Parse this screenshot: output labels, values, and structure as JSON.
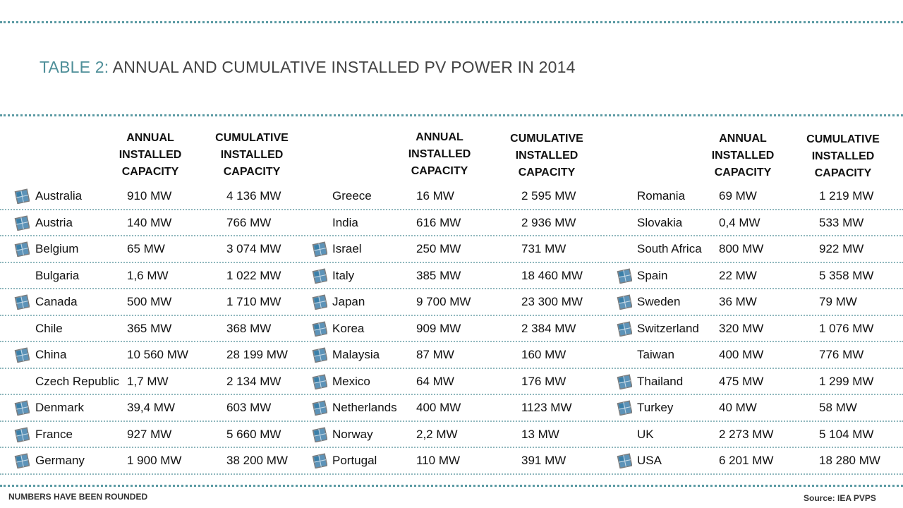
{
  "title": {
    "prefix": "TABLE 2:",
    "text": "ANNUAL AND CUMULATIVE INSTALLED PV POWER IN 2014"
  },
  "headers": {
    "annual": "ANNUAL\nINSTALLED\nCAPACITY",
    "cumulative": "CUMULATIVE\nINSTALLED\nCAPACITY"
  },
  "icon": {
    "name": "solar-panel-icon",
    "color": "#3a7fa8"
  },
  "columns": [
    {
      "rows": [
        {
          "country": "Australia",
          "annual": "910 MW",
          "cumulative": "4 136 MW",
          "icon": true
        },
        {
          "country": "Austria",
          "annual": "140 MW",
          "cumulative": "766 MW",
          "icon": true
        },
        {
          "country": "Belgium",
          "annual": "65 MW",
          "cumulative": "3 074 MW",
          "icon": true
        },
        {
          "country": "Bulgaria",
          "annual": "1,6 MW",
          "cumulative": "1 022 MW",
          "icon": false
        },
        {
          "country": "Canada",
          "annual": "500 MW",
          "cumulative": "1 710 MW",
          "icon": true
        },
        {
          "country": "Chile",
          "annual": " 365 MW",
          "cumulative": "368 MW",
          "icon": false
        },
        {
          "country": "China",
          "annual": "10 560 MW",
          "cumulative": "28 199 MW",
          "icon": true
        },
        {
          "country": "Czech Republic",
          "annual": "1,7 MW",
          "cumulative": "2 134 MW",
          "icon": false
        },
        {
          "country": "Denmark",
          "annual": "39,4 MW",
          "cumulative": "603 MW",
          "icon": true
        },
        {
          "country": "France",
          "annual": "927 MW",
          "cumulative": "5 660 MW",
          "icon": true
        },
        {
          "country": "Germany",
          "annual": "1 900 MW",
          "cumulative": "38 200 MW",
          "icon": true
        }
      ]
    },
    {
      "rows": [
        {
          "country": "Greece",
          "annual": "16 MW",
          "cumulative": "2 595 MW",
          "icon": false
        },
        {
          "country": "India",
          "annual": "616 MW",
          "cumulative": "2 936 MW",
          "icon": false
        },
        {
          "country": "Israel",
          "annual": "250 MW",
          "cumulative": "731 MW",
          "icon": true
        },
        {
          "country": "Italy",
          "annual": "385 MW",
          "cumulative": "18 460 MW",
          "icon": true
        },
        {
          "country": "Japan",
          "annual": "9 700 MW",
          "cumulative": "23 300 MW",
          "icon": true
        },
        {
          "country": "Korea",
          "annual": "909 MW",
          "cumulative": "2 384 MW",
          "icon": true
        },
        {
          "country": "Malaysia",
          "annual": "87 MW",
          "cumulative": "160 MW",
          "icon": true
        },
        {
          "country": "Mexico",
          "annual": "64 MW",
          "cumulative": " 176 MW",
          "icon": true
        },
        {
          "country": "Netherlands",
          "annual": "400 MW",
          "cumulative": "1123 MW",
          "icon": true
        },
        {
          "country": "Norway",
          "annual": " 2,2 MW",
          "cumulative": "13 MW",
          "icon": true
        },
        {
          "country": "Portugal",
          "annual": "110 MW",
          "cumulative": "391 MW",
          "icon": true
        }
      ]
    },
    {
      "rows": [
        {
          "country": "Romania",
          "annual": "69 MW",
          "cumulative": "1 219 MW",
          "icon": false
        },
        {
          "country": "Slovakia",
          "annual": "0,4 MW",
          "cumulative": "533 MW",
          "icon": false
        },
        {
          "country": "South Africa",
          "annual": "800 MW",
          "cumulative": "922 MW",
          "icon": false
        },
        {
          "country": "Spain",
          "annual": "22 MW",
          "cumulative": "5 358 MW",
          "icon": true
        },
        {
          "country": "Sweden",
          "annual": "36 MW",
          "cumulative": "79 MW",
          "icon": true
        },
        {
          "country": "Switzerland",
          "annual": "320 MW",
          "cumulative": "1 076 MW",
          "icon": true
        },
        {
          "country": "Taiwan",
          "annual": "400 MW",
          "cumulative": "776 MW",
          "icon": false
        },
        {
          "country": "Thailand",
          "annual": "475 MW",
          "cumulative": "1 299 MW",
          "icon": true
        },
        {
          "country": "Turkey",
          "annual": "40 MW",
          "cumulative": "58 MW",
          "icon": true
        },
        {
          "country": "UK",
          "annual": "2 273 MW",
          "cumulative": "5 104 MW",
          "icon": false
        },
        {
          "country": "USA",
          "annual": "6 201 MW",
          "cumulative": "18 280 MW",
          "icon": true
        }
      ]
    }
  ],
  "footer": {
    "note": "NUMBERS HAVE BEEN ROUNDED",
    "source": "Source: IEA PVPS"
  }
}
